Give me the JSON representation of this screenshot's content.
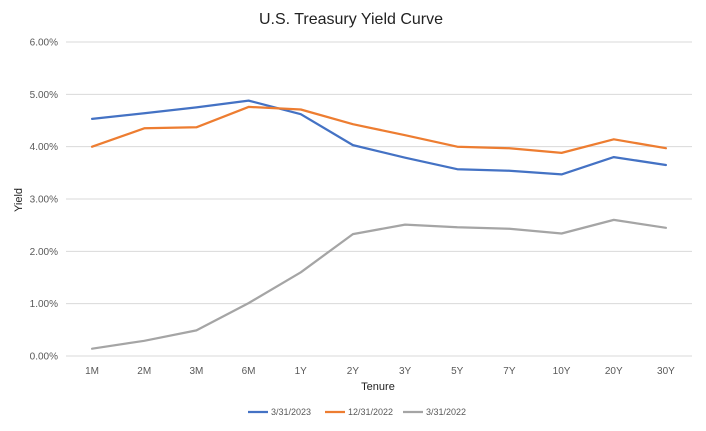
{
  "chart_data": {
    "type": "line",
    "title": "U.S. Treasury Yield Curve",
    "xlabel": "Tenure",
    "ylabel": "Yield",
    "categories": [
      "1M",
      "2M",
      "3M",
      "6M",
      "1Y",
      "2Y",
      "3Y",
      "5Y",
      "7Y",
      "10Y",
      "20Y",
      "30Y"
    ],
    "ylim": [
      0,
      6
    ],
    "yticks": [
      0,
      1,
      2,
      3,
      4,
      5,
      6
    ],
    "ytick_labels": [
      "0.00%",
      "1.00%",
      "2.00%",
      "3.00%",
      "4.00%",
      "5.00%",
      "6.00%"
    ],
    "grid": "horizontal",
    "legend": "bottom",
    "series": [
      {
        "name": "3/31/2023",
        "color": "#4472C4",
        "values": [
          4.53,
          4.64,
          4.75,
          4.88,
          4.62,
          4.03,
          3.79,
          3.57,
          3.54,
          3.47,
          3.8,
          3.65
        ]
      },
      {
        "name": "12/31/2022",
        "color": "#ED7D31",
        "values": [
          4.0,
          4.35,
          4.37,
          4.76,
          4.71,
          4.43,
          4.22,
          4.0,
          3.97,
          3.88,
          4.14,
          3.97
        ]
      },
      {
        "name": "3/31/2022",
        "color": "#A5A5A5",
        "values": [
          0.14,
          0.29,
          0.49,
          1.01,
          1.6,
          2.33,
          2.51,
          2.46,
          2.43,
          2.34,
          2.6,
          2.45
        ]
      }
    ]
  }
}
